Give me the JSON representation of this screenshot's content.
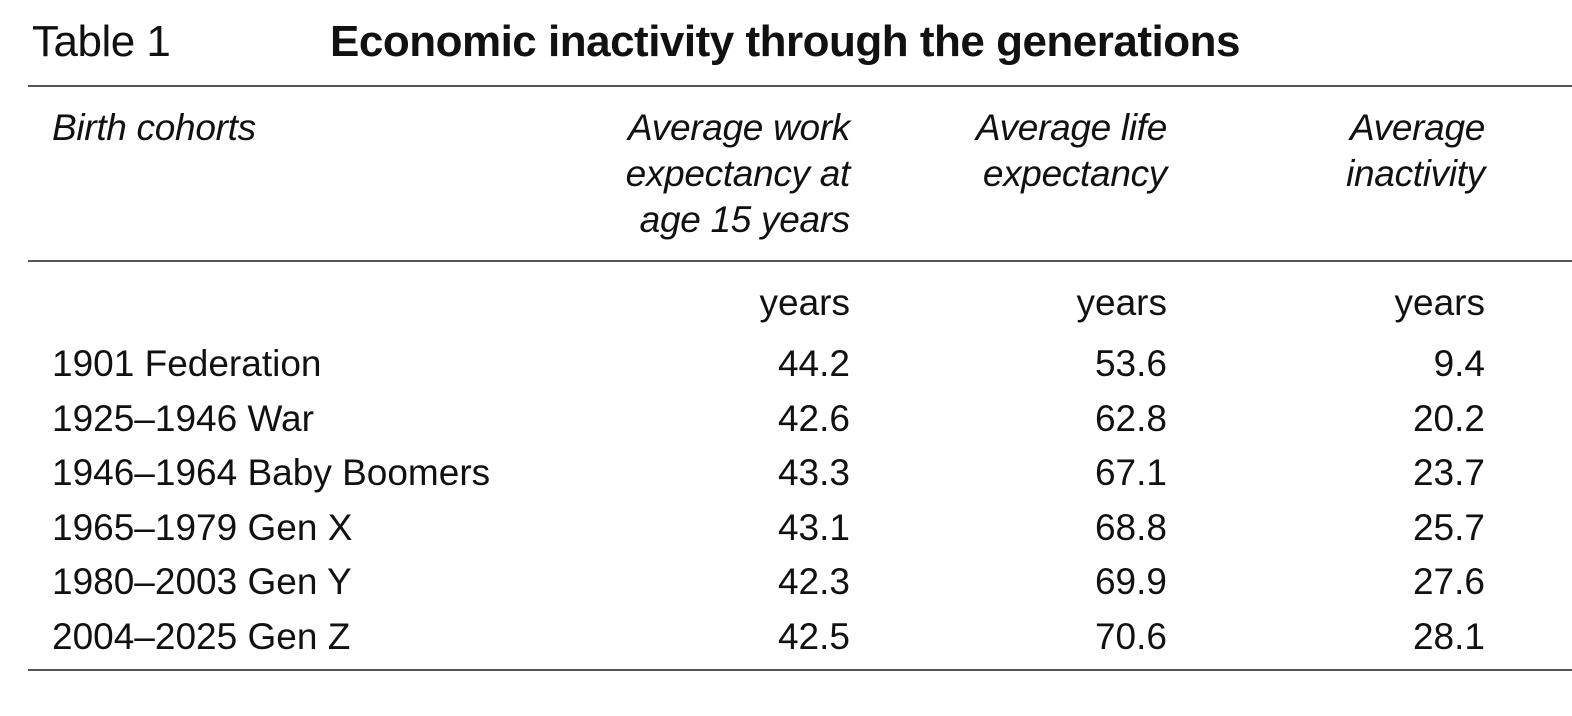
{
  "table": {
    "label": "Table 1",
    "title": "Economic inactivity through the generations",
    "headers": {
      "cohort": "Birth cohorts",
      "work": [
        "Average work",
        "expectancy at",
        "age 15 years"
      ],
      "life": [
        "Average life",
        "expectancy"
      ],
      "inactivity": [
        "Average",
        "inactivity"
      ]
    },
    "units": {
      "work": "years",
      "life": "years",
      "inactivity": "years"
    },
    "rows": [
      {
        "cohort": "1901 Federation",
        "work": "44.2",
        "life": "53.6",
        "inactivity": "9.4"
      },
      {
        "cohort": "1925–1946 War",
        "work": "42.6",
        "life": "62.8",
        "inactivity": "20.2"
      },
      {
        "cohort": "1946–1964 Baby Boomers",
        "work": "43.3",
        "life": "67.1",
        "inactivity": "23.7"
      },
      {
        "cohort": "1965–1979 Gen X",
        "work": "43.1",
        "life": "68.8",
        "inactivity": "25.7"
      },
      {
        "cohort": "1980–2003 Gen Y",
        "work": "42.3",
        "life": "69.9",
        "inactivity": "27.6"
      },
      {
        "cohort": "2004–2025 Gen Z",
        "work": "42.5",
        "life": "70.6",
        "inactivity": "28.1"
      }
    ]
  }
}
